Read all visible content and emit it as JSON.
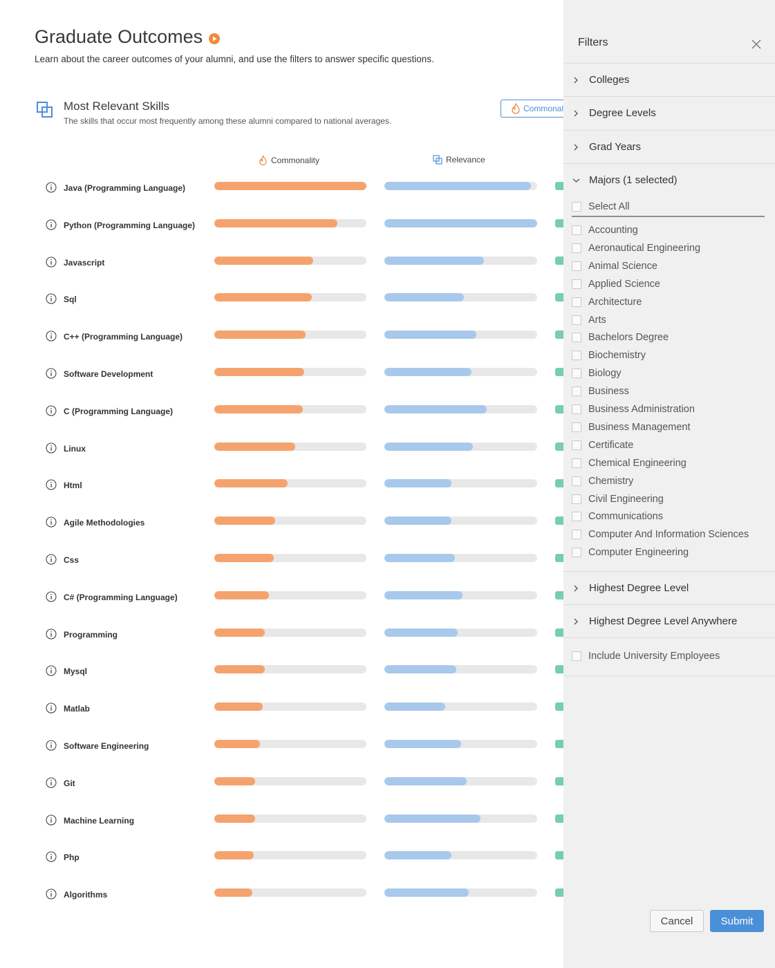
{
  "header": {
    "title": "Graduate Outcomes",
    "subtitle": "Learn about the career outcomes of your alumni, and use the filters to answer specific questions."
  },
  "section": {
    "title": "Most Relevant Skills",
    "subtitle": "The skills that occur most frequently among these alumni compared to national averages.",
    "sort_button_label": "Commonal",
    "col_commonality": "Commonality",
    "col_relevance": "Relevance"
  },
  "colors": {
    "commonality": "#f5a36e",
    "relevance": "#a8c9ec",
    "third_metric": "#76cdb4",
    "accent": "#4a90d9"
  },
  "skills": [
    {
      "name": "Java (Programming Language)",
      "commonality": 1.0,
      "relevance": 0.96
    },
    {
      "name": "Python (Programming Language)",
      "commonality": 0.81,
      "relevance": 1.0
    },
    {
      "name": "Javascript",
      "commonality": 0.65,
      "relevance": 0.65
    },
    {
      "name": "Sql",
      "commonality": 0.64,
      "relevance": 0.52
    },
    {
      "name": "C++ (Programming Language)",
      "commonality": 0.6,
      "relevance": 0.6
    },
    {
      "name": "Software Development",
      "commonality": 0.59,
      "relevance": 0.57
    },
    {
      "name": "C (Programming Language)",
      "commonality": 0.58,
      "relevance": 0.67
    },
    {
      "name": "Linux",
      "commonality": 0.53,
      "relevance": 0.58
    },
    {
      "name": "Html",
      "commonality": 0.48,
      "relevance": 0.44
    },
    {
      "name": "Agile Methodologies",
      "commonality": 0.4,
      "relevance": 0.44
    },
    {
      "name": "Css",
      "commonality": 0.39,
      "relevance": 0.46
    },
    {
      "name": "C# (Programming Language)",
      "commonality": 0.36,
      "relevance": 0.51
    },
    {
      "name": "Programming",
      "commonality": 0.33,
      "relevance": 0.48
    },
    {
      "name": "Mysql",
      "commonality": 0.33,
      "relevance": 0.47
    },
    {
      "name": "Matlab",
      "commonality": 0.32,
      "relevance": 0.4
    },
    {
      "name": "Software Engineering",
      "commonality": 0.3,
      "relevance": 0.5
    },
    {
      "name": "Git",
      "commonality": 0.27,
      "relevance": 0.54
    },
    {
      "name": "Machine Learning",
      "commonality": 0.27,
      "relevance": 0.63
    },
    {
      "name": "Php",
      "commonality": 0.26,
      "relevance": 0.44
    },
    {
      "name": "Algorithms",
      "commonality": 0.25,
      "relevance": 0.55
    }
  ],
  "filters": {
    "title": "Filters",
    "accordions": [
      "Colleges",
      "Degree Levels",
      "Grad Years"
    ],
    "majors_label": "Majors (1 selected)",
    "select_all": "Select All",
    "majors": [
      "Accounting",
      "Aeronautical Engineering",
      "Animal Science",
      "Applied Science",
      "Architecture",
      "Arts",
      "Bachelors Degree",
      "Biochemistry",
      "Biology",
      "Business",
      "Business Administration",
      "Business Management",
      "Certificate",
      "Chemical Engineering",
      "Chemistry",
      "Civil Engineering",
      "Communications",
      "Computer And Information Sciences",
      "Computer Engineering"
    ],
    "bottom_accordions": [
      "Highest Degree Level",
      "Highest Degree Level Anywhere"
    ],
    "include_employees": "Include University Employees",
    "cancel_label": "Cancel",
    "submit_label": "Submit"
  }
}
